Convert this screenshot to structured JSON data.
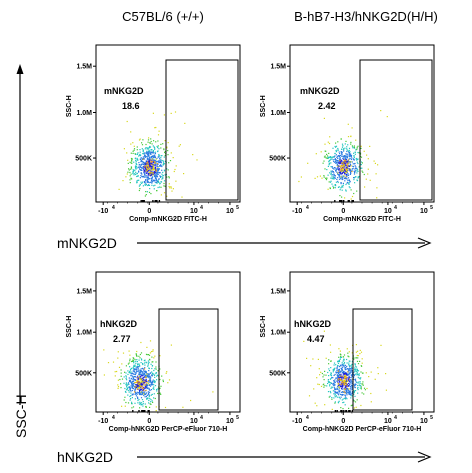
{
  "figure": {
    "column_headers": [
      "C57BL/6 (+/+)",
      "B-hB7-H3/hNKG2D(H/H)"
    ],
    "y_axis_marker": "SSC-H",
    "row_markers": [
      "mNKG2D",
      "hNKG2D"
    ]
  },
  "chart_data": [
    {
      "type": "scatter",
      "panel": "row1-col1",
      "sample": "C57BL/6 (+/+)",
      "xlabel": "Comp-mNKG2D FITC-H",
      "ylabel": "SSC-H",
      "x_scale": "biexponential",
      "xlim": [
        -30000,
        300000
      ],
      "ylim": [
        0,
        1600000
      ],
      "x_ticks": [
        {
          "base": "-10",
          "exp": "4"
        },
        {
          "base": "0",
          "exp": ""
        },
        {
          "base": "10",
          "exp": "4"
        },
        {
          "base": "10",
          "exp": "5"
        }
      ],
      "y_ticks": [
        "500K",
        "1.0M",
        "1.5M"
      ],
      "gate": {
        "name": "mNKG2D",
        "value": "18.6"
      },
      "population": {
        "center_x": 0,
        "center_y": 350000,
        "n": 700
      }
    },
    {
      "type": "scatter",
      "panel": "row1-col2",
      "sample": "B-hB7-H3/hNKG2D(H/H)",
      "xlabel": "Comp-mNKG2D FITC-H",
      "ylabel": "SSC-H",
      "x_scale": "biexponential",
      "xlim": [
        -30000,
        300000
      ],
      "ylim": [
        0,
        1600000
      ],
      "x_ticks": [
        {
          "base": "-10",
          "exp": "4"
        },
        {
          "base": "0",
          "exp": ""
        },
        {
          "base": "10",
          "exp": "4"
        },
        {
          "base": "10",
          "exp": "5"
        }
      ],
      "y_ticks": [
        "500K",
        "1.0M",
        "1.5M"
      ],
      "gate": {
        "name": "mNKG2D",
        "value": "2.42"
      },
      "population": {
        "center_x": 0,
        "center_y": 360000,
        "n": 550
      }
    },
    {
      "type": "scatter",
      "panel": "row2-col1",
      "sample": "C57BL/6 (+/+)",
      "xlabel": "Comp-hNKG2D PerCP-eFluor 710-H",
      "ylabel": "SSC-H",
      "x_scale": "biexponential",
      "xlim": [
        -30000,
        300000
      ],
      "ylim": [
        0,
        1600000
      ],
      "x_ticks": [
        {
          "base": "-10",
          "exp": "4"
        },
        {
          "base": "0",
          "exp": ""
        },
        {
          "base": "10",
          "exp": "4"
        },
        {
          "base": "10",
          "exp": "5"
        }
      ],
      "y_ticks": [
        "500K",
        "1.0M",
        "1.5M"
      ],
      "gate": {
        "name": "hNKG2D",
        "value": "2.77"
      },
      "population": {
        "center_x": -2000,
        "center_y": 340000,
        "n": 650
      }
    },
    {
      "type": "scatter",
      "panel": "row2-col2",
      "sample": "B-hB7-H3/hNKG2D(H/H)",
      "xlabel": "Comp-hNKG2D PerCP-eFluor 710-H",
      "ylabel": "SSC-H",
      "x_scale": "biexponential",
      "xlim": [
        -30000,
        300000
      ],
      "ylim": [
        0,
        1600000
      ],
      "x_ticks": [
        {
          "base": "-10",
          "exp": "4"
        },
        {
          "base": "0",
          "exp": ""
        },
        {
          "base": "10",
          "exp": "4"
        },
        {
          "base": "10",
          "exp": "5"
        }
      ],
      "y_ticks": [
        "500K",
        "1.0M",
        "1.5M"
      ],
      "gate": {
        "name": "hNKG2D",
        "value": "4.47"
      },
      "population": {
        "center_x": 0,
        "center_y": 360000,
        "n": 650
      }
    }
  ]
}
